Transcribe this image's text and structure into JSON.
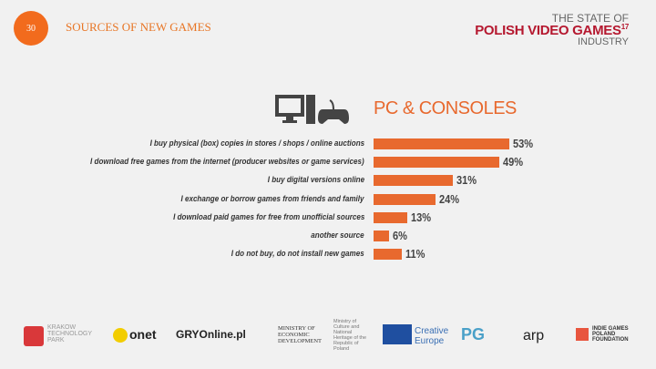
{
  "header": {
    "page_number": "30",
    "title": "SOURCES OF NEW GAMES",
    "logo_line1": "THE STATE OF",
    "logo_line2": "POLISH VIDEO GAMES",
    "logo_sup": "17",
    "logo_line3": "INDUSTRY"
  },
  "chart_data": {
    "type": "bar",
    "orientation": "horizontal",
    "title": "PC & CONSOLES",
    "categories": [
      "I buy physical (box) copies in stores / shops / online auctions",
      "I download free games from the internet (producer websites or game services)",
      "I buy digital versions online",
      "I exchange or borrow games from friends and family",
      "I download paid games for free from unofficial sources",
      "another source",
      "I do not buy, do not install new games"
    ],
    "values": [
      53,
      49,
      31,
      24,
      13,
      6,
      11
    ],
    "labels": [
      "53%",
      "49%",
      "31%",
      "24%",
      "13%",
      "6%",
      "11%"
    ],
    "unit": "%",
    "color": "#e8692e"
  },
  "footer": {
    "logos": [
      "KRAKOW TECHNOLOGY PARK",
      "onet",
      "GRYOnline.pl",
      "MINISTRY OF ECONOMIC DEVELOPMENT",
      "Ministry of Culture and National Heritage of the Republic of Poland",
      "Creative Europe",
      "PG",
      "arp",
      "INDIE GAMES POLAND FOUNDATION"
    ]
  }
}
